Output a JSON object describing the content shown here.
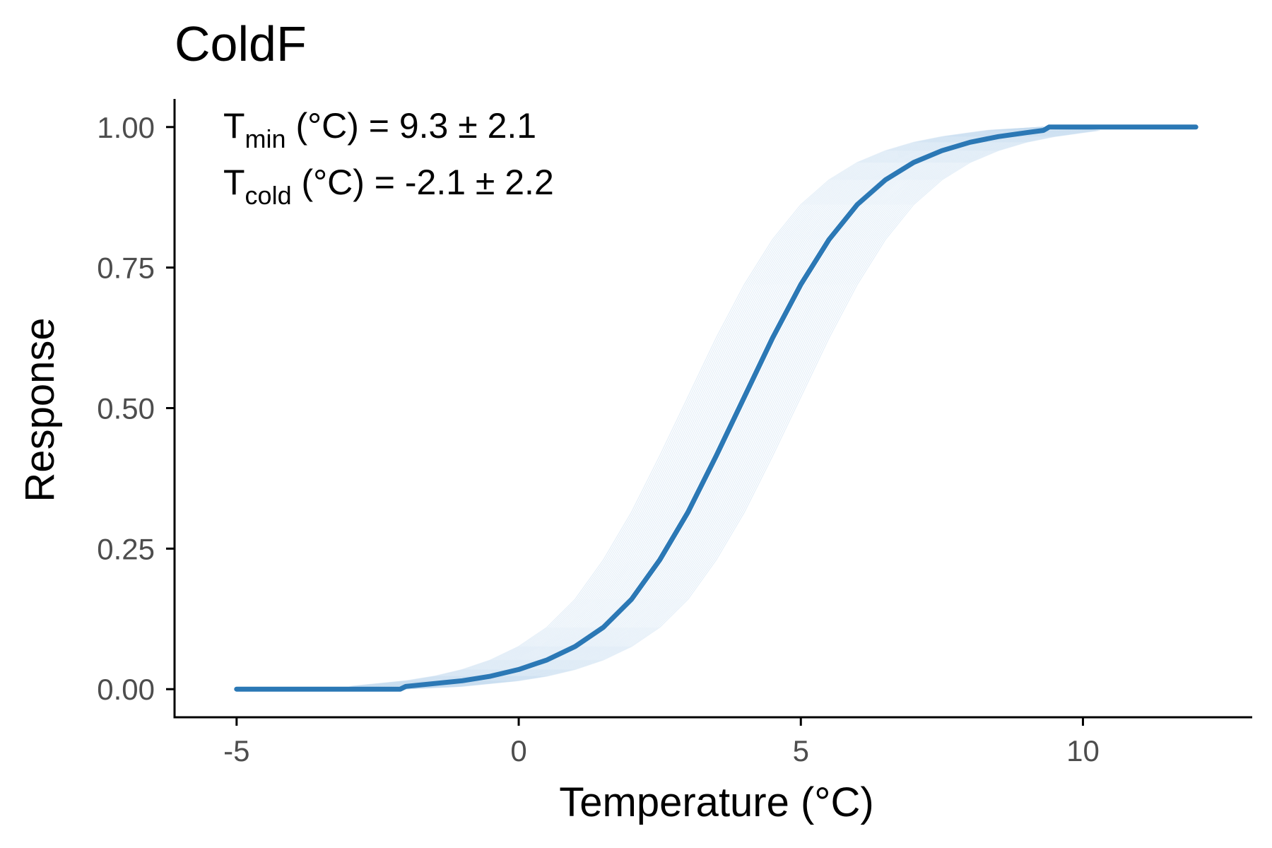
{
  "chart_data": {
    "type": "line",
    "title": "ColdF",
    "xlabel": "Temperature (°C)",
    "ylabel": "Response",
    "xlim": [
      -6.1,
      13.0
    ],
    "ylim": [
      -0.05,
      1.05
    ],
    "x_ticks": [
      -5,
      0,
      5,
      10
    ],
    "x_tick_labels": [
      "-5",
      "0",
      "5",
      "10"
    ],
    "y_ticks": [
      0,
      0.25,
      0.5,
      0.75,
      1
    ],
    "y_tick_labels": [
      "0.00",
      "0.25",
      "0.50",
      "0.75",
      "1.00"
    ],
    "grid": false,
    "colors": {
      "main_line": "#2b78b5",
      "uncertainty_lines": "#c6dbef",
      "axis": "#000000",
      "tick_text": "#4d4d4d"
    },
    "annotations": [
      {
        "base": "T",
        "sub": "min",
        "rest": " (°C) =  9.3 ± 2.1"
      },
      {
        "base": "T",
        "sub": "cold",
        "rest": " (°C) =  -2.1 ± 2.2"
      }
    ],
    "series": [
      {
        "role": "fit",
        "x": [
          -5,
          -4,
          -3,
          -2.1,
          -2.0,
          -1.5,
          -1,
          -0.5,
          0,
          0.5,
          1,
          1.5,
          2,
          2.5,
          3,
          3.5,
          4,
          4.5,
          5,
          5.5,
          6,
          6.5,
          7,
          7.5,
          8,
          8.5,
          9,
          9.3,
          9.4,
          10,
          11,
          12
        ],
        "y": [
          0,
          0,
          0,
          0,
          0.005,
          0.01,
          0.015,
          0.023,
          0.035,
          0.052,
          0.076,
          0.11,
          0.16,
          0.23,
          0.315,
          0.415,
          0.52,
          0.625,
          0.72,
          0.8,
          0.862,
          0.906,
          0.937,
          0.958,
          0.973,
          0.983,
          0.99,
          0.994,
          1.0,
          1.0,
          1.0,
          1.0
        ]
      }
    ],
    "uncertainty_band": {
      "role": "posterior draws",
      "count": 60,
      "center_shift_range": [
        -1.0,
        1.0
      ]
    }
  }
}
